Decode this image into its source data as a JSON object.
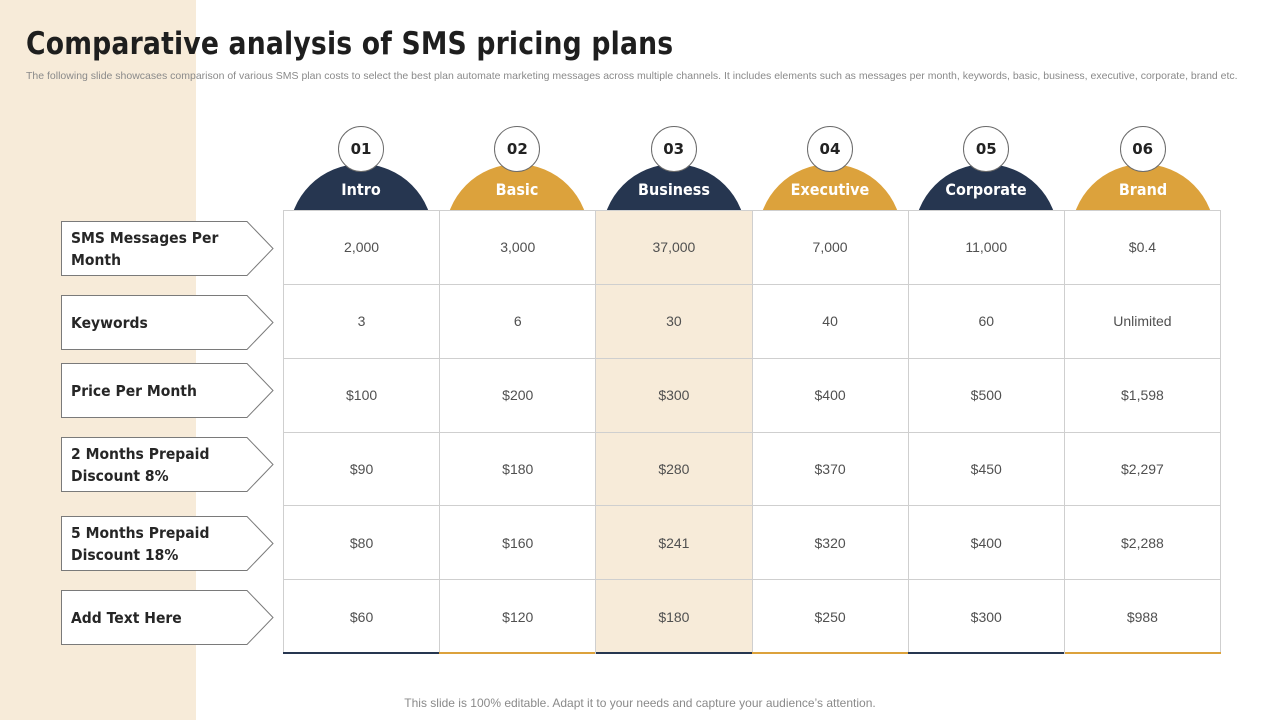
{
  "title": "Comparative analysis of SMS pricing plans",
  "subtitle": "The following slide showcases comparison of various SMS plan costs to select the best plan automate marketing messages across multiple channels. It includes elements such as messages per month, keywords, basic, business, executive, corporate, brand etc.",
  "colors": {
    "navy": "#263650",
    "gold": "#dca23c",
    "highlight": "#f7ebd9"
  },
  "plans": [
    {
      "num": "01",
      "name": "Intro",
      "color": "#263650"
    },
    {
      "num": "02",
      "name": "Basic",
      "color": "#dca23c"
    },
    {
      "num": "03",
      "name": "Business",
      "color": "#263650"
    },
    {
      "num": "04",
      "name": "Executive",
      "color": "#dca23c"
    },
    {
      "num": "05",
      "name": "Corporate",
      "color": "#263650"
    },
    {
      "num": "06",
      "name": "Brand",
      "color": "#dca23c"
    }
  ],
  "rows": [
    {
      "label": "SMS Messages Per Month",
      "values": [
        "2,000",
        "3,000",
        "37,000",
        "7,000",
        "11,000",
        "$0.4"
      ]
    },
    {
      "label": "Keywords",
      "values": [
        "3",
        "6",
        "30",
        "40",
        "60",
        "Unlimited"
      ]
    },
    {
      "label": "Price Per Month",
      "values": [
        "$100",
        "$200",
        "$300",
        "$400",
        "$500",
        "$1,598"
      ]
    },
    {
      "label": "2 Months Prepaid Discount 8%",
      "values": [
        "$90",
        "$180",
        "$280",
        "$370",
        "$450",
        "$2,297"
      ]
    },
    {
      "label": "5 Months Prepaid Discount 18%",
      "values": [
        "$80",
        "$160",
        "$241",
        "$320",
        "$400",
        "$2,288"
      ]
    },
    {
      "label": "Add Text Here",
      "values": [
        "$60",
        "$120",
        "$180",
        "$250",
        "$300",
        "$988"
      ]
    }
  ],
  "footer": "This slide is 100% editable. Adapt it to your needs and capture your audience’s attention."
}
